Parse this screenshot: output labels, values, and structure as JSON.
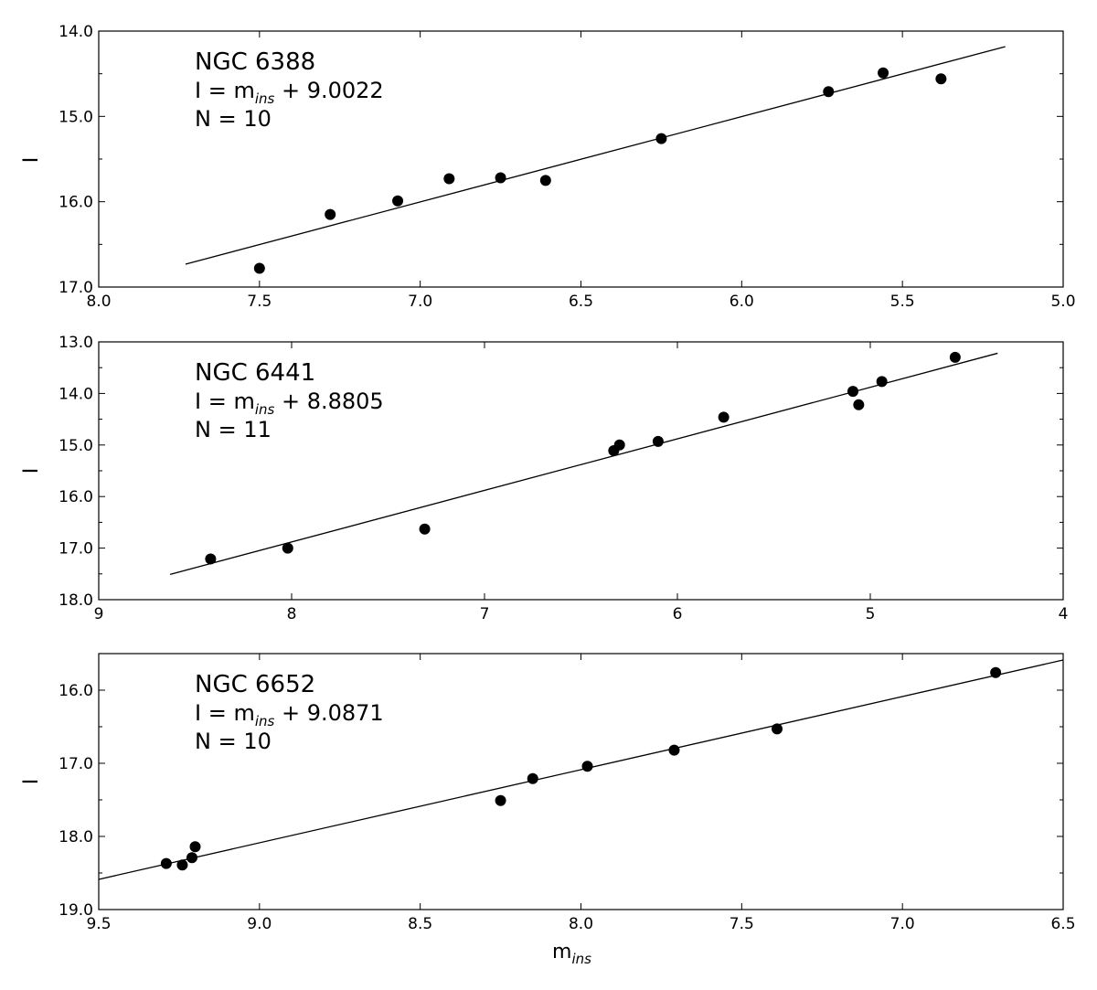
{
  "chart_data": [
    {
      "type": "scatter",
      "xlim": [
        8.0,
        5.0
      ],
      "ylim": [
        17.0,
        14.0
      ],
      "xticks": [
        "8.0",
        "7.5",
        "7.0",
        "6.5",
        "6.0",
        "5.5",
        "5.0"
      ],
      "xtick_values": [
        8.0,
        7.5,
        7.0,
        6.5,
        6.0,
        5.5,
        5.0
      ],
      "yticks": [
        "14.0",
        "15.0",
        "16.0",
        "17.0"
      ],
      "ytick_values": [
        14.0,
        15.0,
        16.0,
        17.0
      ],
      "ylabel": "I",
      "xlabel": "",
      "annotation": {
        "cluster": "NGC 6388",
        "eq_prefix": "I = m",
        "eq_sub": "ins",
        "eq_suffix": " + 9.0022",
        "count": "N = 10"
      },
      "points": [
        {
          "x": 7.5,
          "y": 16.78
        },
        {
          "x": 7.28,
          "y": 16.15
        },
        {
          "x": 7.07,
          "y": 15.99
        },
        {
          "x": 6.91,
          "y": 15.73
        },
        {
          "x": 6.75,
          "y": 15.72
        },
        {
          "x": 6.61,
          "y": 15.75
        },
        {
          "x": 6.25,
          "y": 15.26
        },
        {
          "x": 5.73,
          "y": 14.71
        },
        {
          "x": 5.56,
          "y": 14.49
        },
        {
          "x": 5.38,
          "y": 14.56
        }
      ],
      "fit_offset": 9.0022,
      "fit_range": [
        7.73,
        5.18
      ]
    },
    {
      "type": "scatter",
      "xlim": [
        9,
        4
      ],
      "ylim": [
        18.0,
        13.0
      ],
      "xticks": [
        "9",
        "8",
        "7",
        "6",
        "5",
        "4"
      ],
      "xtick_values": [
        9,
        8,
        7,
        6,
        5,
        4
      ],
      "yticks": [
        "13.0",
        "14.0",
        "15.0",
        "16.0",
        "17.0",
        "18.0"
      ],
      "ytick_values": [
        13.0,
        14.0,
        15.0,
        16.0,
        17.0,
        18.0
      ],
      "ylabel": "I",
      "xlabel": "",
      "annotation": {
        "cluster": "NGC 6441",
        "eq_prefix": "I = m",
        "eq_sub": "ins",
        "eq_suffix": " + 8.8805",
        "count": "N = 11"
      },
      "points": [
        {
          "x": 8.42,
          "y": 17.21
        },
        {
          "x": 8.02,
          "y": 17.0
        },
        {
          "x": 7.31,
          "y": 16.63
        },
        {
          "x": 6.33,
          "y": 15.11
        },
        {
          "x": 6.3,
          "y": 15.0
        },
        {
          "x": 6.1,
          "y": 14.93
        },
        {
          "x": 5.76,
          "y": 14.46
        },
        {
          "x": 5.09,
          "y": 13.96
        },
        {
          "x": 5.06,
          "y": 14.22
        },
        {
          "x": 4.94,
          "y": 13.77
        },
        {
          "x": 4.56,
          "y": 13.3
        }
      ],
      "fit_offset": 8.8805,
      "fit_range": [
        8.63,
        4.34
      ]
    },
    {
      "type": "scatter",
      "xlim": [
        9.5,
        6.5
      ],
      "ylim": [
        19.0,
        15.5
      ],
      "xticks": [
        "9.5",
        "9.0",
        "8.5",
        "8.0",
        "7.5",
        "7.0",
        "6.5"
      ],
      "xtick_values": [
        9.5,
        9.0,
        8.5,
        8.0,
        7.5,
        7.0,
        6.5
      ],
      "yticks": [
        "16.0",
        "17.0",
        "18.0",
        "19.0"
      ],
      "ytick_values": [
        16.0,
        17.0,
        18.0,
        19.0
      ],
      "ylabel": "I",
      "xlabel_prefix": "m",
      "xlabel_sub": "ins",
      "annotation": {
        "cluster": "NGC 6652",
        "eq_prefix": "I = m",
        "eq_sub": "ins",
        "eq_suffix": " + 9.0871",
        "count": "N = 10"
      },
      "points": [
        {
          "x": 9.29,
          "y": 18.37
        },
        {
          "x": 9.24,
          "y": 18.39
        },
        {
          "x": 9.21,
          "y": 18.29
        },
        {
          "x": 9.2,
          "y": 18.14
        },
        {
          "x": 8.25,
          "y": 17.51
        },
        {
          "x": 8.15,
          "y": 17.21
        },
        {
          "x": 7.98,
          "y": 17.04
        },
        {
          "x": 7.71,
          "y": 16.82
        },
        {
          "x": 7.39,
          "y": 16.53
        },
        {
          "x": 6.71,
          "y": 15.76
        }
      ],
      "fit_offset": 9.0871,
      "fit_range": [
        9.5,
        6.5
      ]
    }
  ]
}
